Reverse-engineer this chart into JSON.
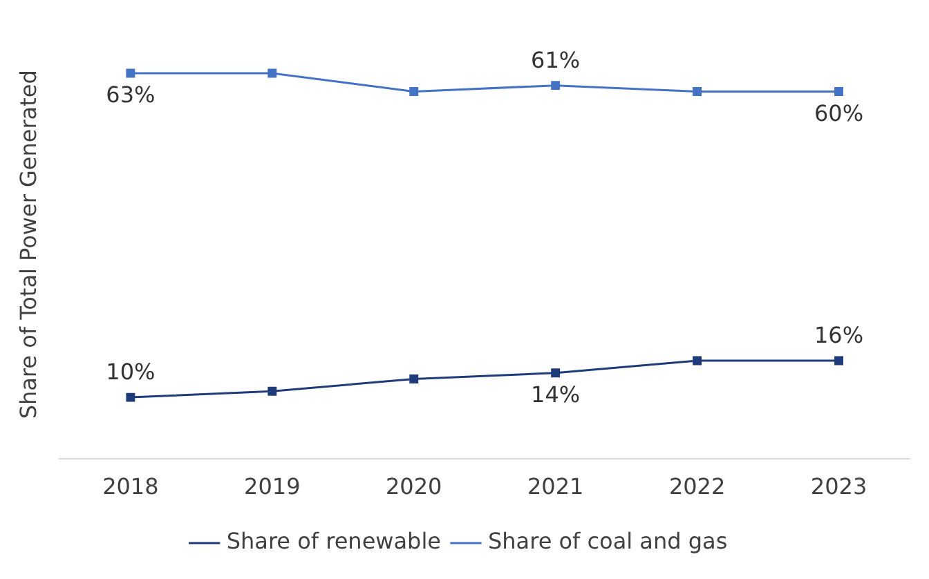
{
  "chart_data": {
    "type": "line",
    "ylabel": "Share of Total Power Generated",
    "categories": [
      "2018",
      "2019",
      "2020",
      "2021",
      "2022",
      "2023"
    ],
    "series": [
      {
        "name": "Share of renewable",
        "color": "#1f3b7a",
        "values": [
          10,
          11,
          13,
          14,
          16,
          16
        ],
        "value_labels": [
          "10%",
          null,
          null,
          "14%",
          null,
          "16%"
        ]
      },
      {
        "name": "Share of coal and gas",
        "color": "#4472c4",
        "values": [
          63,
          63,
          60,
          61,
          60,
          60
        ],
        "value_labels": [
          "63%",
          null,
          null,
          "61%",
          null,
          "60%"
        ]
      }
    ],
    "tick_labels": "x",
    "grid": false,
    "legend": "bottom",
    "marker": "square",
    "line_style": "solid"
  }
}
